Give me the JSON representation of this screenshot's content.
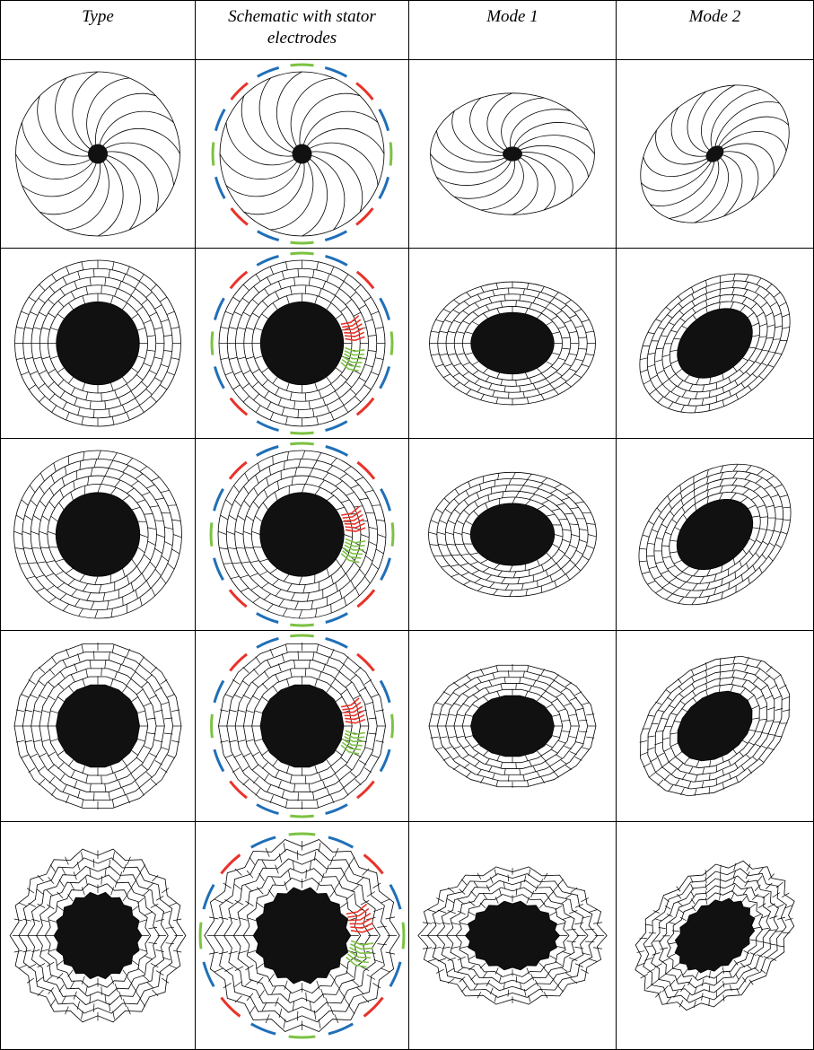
{
  "table": {
    "header": [
      "Type",
      "Schematic with stator electrodes",
      "Mode 1",
      "Mode 2"
    ]
  }
}
